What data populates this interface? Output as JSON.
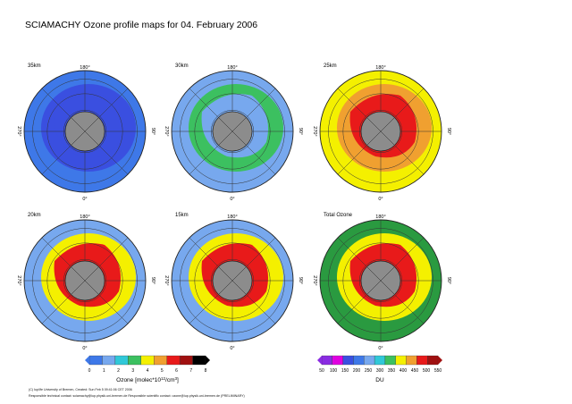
{
  "title": "SCIAMACHY Ozone profile maps for 04. February 2006",
  "lon_labels": {
    "top": "180°",
    "left": "270°",
    "right": "90°",
    "bottom": "0°"
  },
  "colors": {
    "purple": "#8a2be2",
    "magenta": "#e000e0",
    "dark_blue": "#3a4fe0",
    "mid_blue": "#3e78e8",
    "light_blue": "#77a8ee",
    "cyan": "#30c8d8",
    "green": "#3cc060",
    "dark_green": "#2a9a40",
    "yellow": "#f4f000",
    "orange": "#f0a030",
    "red": "#e81a1a",
    "dark_red": "#a01010",
    "black": "#000000",
    "polar_hole": "#8c8c8c"
  },
  "panels": [
    {
      "label": "35km",
      "fill": [
        "mid_blue",
        "dark_blue",
        "dark_blue"
      ]
    },
    {
      "label": "30km",
      "fill": [
        "light_blue",
        "green",
        "light_blue"
      ]
    },
    {
      "label": "25km",
      "fill": [
        "yellow",
        "orange",
        "red"
      ]
    },
    {
      "label": "20km",
      "fill": [
        "light_blue",
        "yellow",
        "red"
      ]
    },
    {
      "label": "15km",
      "fill": [
        "light_blue",
        "yellow",
        "red"
      ]
    },
    {
      "label": "Total Ozone",
      "fill": [
        "dark_green",
        "yellow",
        "red"
      ]
    }
  ],
  "colorbars": [
    {
      "ticks": [
        "0",
        "1",
        "2",
        "3",
        "4",
        "5",
        "6",
        "7",
        "8"
      ],
      "label": "Ozone [molec*10",
      "label_sup": "12",
      "label_end": "/cm",
      "label_sup2": "3",
      "label_close": "]",
      "swatches": [
        "mid_blue",
        "light_blue",
        "cyan",
        "green",
        "yellow",
        "orange",
        "red",
        "dark_red",
        "black"
      ]
    },
    {
      "ticks": [
        "50",
        "100",
        "150",
        "200",
        "250",
        "300",
        "350",
        "400",
        "450",
        "500",
        "550"
      ],
      "label": "DU",
      "swatches": [
        "purple",
        "magenta",
        "dark_blue",
        "mid_blue",
        "light_blue",
        "cyan",
        "green",
        "yellow",
        "orange",
        "red",
        "dark_red"
      ]
    }
  ],
  "footer": {
    "line1": "(C) Iup/Ife University of Bremen, Created: Sun Feb  5 09:41:06 CET 2006",
    "line2": "Responsible technical contact: sciamachy@iup.physik.uni-bremen.de   Responsible scientific contact: ozone@iup.physik.uni-bremen.de (PRELIMINARY)"
  }
}
